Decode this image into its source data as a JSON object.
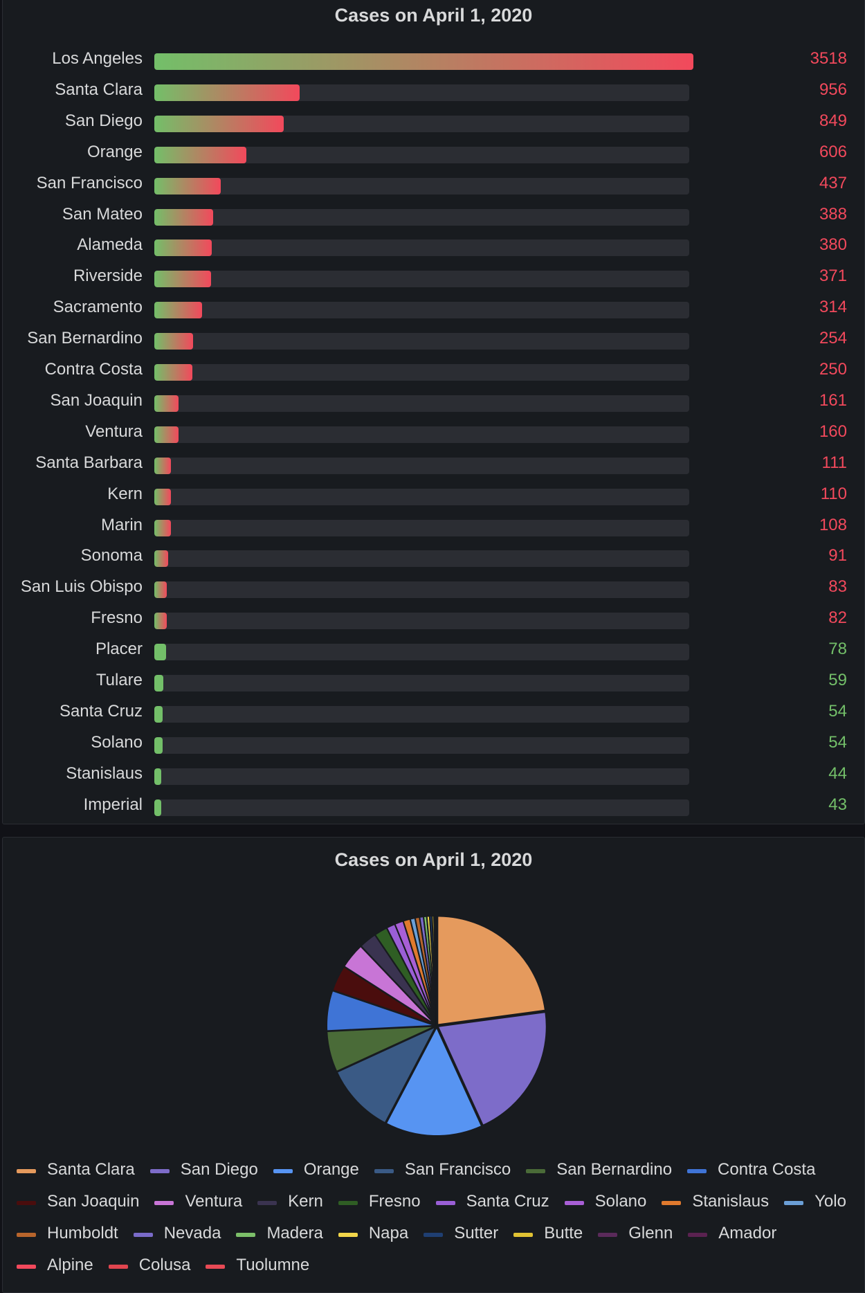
{
  "bar_panel": {
    "title": "Cases on April 1, 2020"
  },
  "pie_panel": {
    "title": "Cases on April 1, 2020"
  },
  "colors": {
    "bar_low": "#73bf69",
    "bar_high": "#f2495c",
    "track": "#2b2d33",
    "value_high": "#f2495c",
    "value_low": "#73bf69"
  },
  "chart_data": [
    {
      "type": "bar",
      "orientation": "horizontal",
      "title": "Cases on April 1, 2020",
      "categories": [
        "Los Angeles",
        "Santa Clara",
        "San Diego",
        "Orange",
        "San Francisco",
        "San Mateo",
        "Alameda",
        "Riverside",
        "Sacramento",
        "San Bernardino",
        "Contra Costa",
        "San Joaquin",
        "Ventura",
        "Santa Barbara",
        "Kern",
        "Marin",
        "Sonoma",
        "San Luis Obispo",
        "Fresno",
        "Placer",
        "Tulare",
        "Santa Cruz",
        "Solano",
        "Stanislaus",
        "Imperial"
      ],
      "values": [
        3518,
        956,
        849,
        606,
        437,
        388,
        380,
        371,
        314,
        254,
        250,
        161,
        160,
        111,
        110,
        108,
        91,
        83,
        82,
        78,
        59,
        54,
        54,
        44,
        43
      ],
      "xlim": [
        0,
        3518
      ],
      "value_threshold": 80
    },
    {
      "type": "pie",
      "title": "Cases on April 1, 2020",
      "slices": [
        {
          "label": "Santa Clara",
          "value": 956,
          "color": "#e59a5d"
        },
        {
          "label": "San Diego",
          "value": 849,
          "color": "#7d6cc9"
        },
        {
          "label": "Orange",
          "value": 606,
          "color": "#5794f2"
        },
        {
          "label": "San Francisco",
          "value": 437,
          "color": "#3a5a85"
        },
        {
          "label": "San Bernardino",
          "value": 254,
          "color": "#4a6b38"
        },
        {
          "label": "Contra Costa",
          "value": 250,
          "color": "#3f74d6"
        },
        {
          "label": "San Joaquin",
          "value": 161,
          "color": "#4a0d0d"
        },
        {
          "label": "Ventura",
          "value": 160,
          "color": "#c875d6"
        },
        {
          "label": "Kern",
          "value": 110,
          "color": "#3a3350"
        },
        {
          "label": "Fresno",
          "value": 82,
          "color": "#2f5e24"
        },
        {
          "label": "Santa Cruz",
          "value": 54,
          "color": "#9a5fd6"
        },
        {
          "label": "Solano",
          "value": 54,
          "color": "#a85fd6"
        },
        {
          "label": "Stanislaus",
          "value": 44,
          "color": "#e07a2e"
        },
        {
          "label": "Yolo",
          "value": 30,
          "color": "#6b9fd6"
        },
        {
          "label": "Humboldt",
          "value": 28,
          "color": "#b8652c"
        },
        {
          "label": "Nevada",
          "value": 24,
          "color": "#7a6bc9"
        },
        {
          "label": "Madera",
          "value": 20,
          "color": "#7cbf69"
        },
        {
          "label": "Napa",
          "value": 18,
          "color": "#f2d64a"
        },
        {
          "label": "Sutter",
          "value": 14,
          "color": "#1f3f72"
        },
        {
          "label": "Butte",
          "value": 12,
          "color": "#e0c233"
        },
        {
          "label": "Glenn",
          "value": 6,
          "color": "#5a2a5a"
        },
        {
          "label": "Amador",
          "value": 4,
          "color": "#5a2250"
        },
        {
          "label": "Alpine",
          "value": 2,
          "color": "#f2495c"
        },
        {
          "label": "Colusa",
          "value": 2,
          "color": "#e0454f"
        },
        {
          "label": "Tuolumne",
          "value": 2,
          "color": "#e84a55"
        }
      ]
    }
  ]
}
